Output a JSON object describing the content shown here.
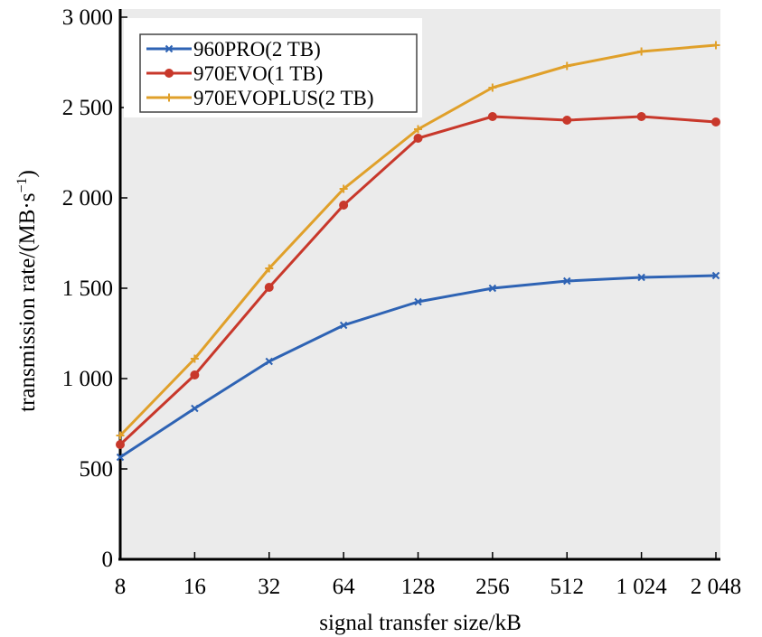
{
  "chart_data": {
    "type": "line",
    "title": "",
    "xlabel": "signal transfer size/kB",
    "ylabel": "transmission rate/(MB·s",
    "ylabel_sup": "−1",
    "ylabel_close": ")",
    "x_tick_labels": [
      "8",
      "16",
      "32",
      "64",
      "128",
      "256",
      "512",
      "1 024",
      "2 048"
    ],
    "y_ticks": [
      0,
      500,
      1000,
      1500,
      2000,
      2500,
      3000
    ],
    "y_tick_labels": [
      "0",
      "500",
      "1 000",
      "1 500",
      "2 000",
      "2 500",
      "3 000"
    ],
    "ylim": [
      0,
      3000
    ],
    "x_scale": "log2",
    "grid": false,
    "legend_position": "top-left",
    "series": [
      {
        "name": "960PRO(2 TB)",
        "color": "#2e63b4",
        "marker": "x",
        "values": [
          565,
          835,
          1095,
          1295,
          1425,
          1500,
          1540,
          1560,
          1570
        ]
      },
      {
        "name": "970EVO(1 TB)",
        "color": "#c8382b",
        "marker": "circle",
        "values": [
          635,
          1020,
          1505,
          1960,
          2330,
          2450,
          2430,
          2450,
          2420
        ]
      },
      {
        "name": "970EVOPLUS(2 TB)",
        "color": "#e0a02a",
        "marker": "plus",
        "values": [
          685,
          1110,
          1610,
          2050,
          2380,
          2610,
          2730,
          2810,
          2845
        ]
      }
    ]
  }
}
